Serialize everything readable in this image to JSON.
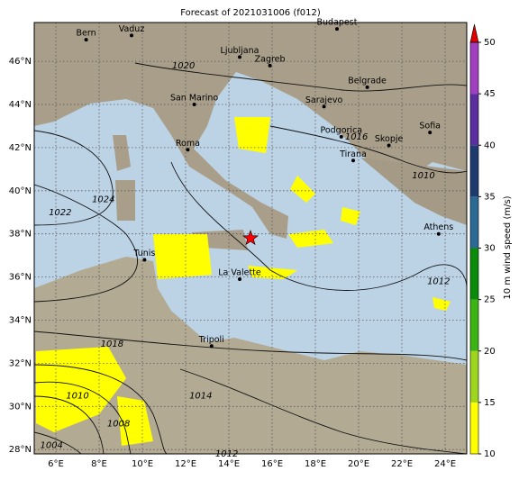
{
  "title": "Forecast of 2021031006 (f012)",
  "lonlim": [
    5,
    25
  ],
  "latlim": [
    27.8,
    47.8
  ],
  "xticks": [
    {
      "value": 6,
      "label": "6°E"
    },
    {
      "value": 8,
      "label": "8°E"
    },
    {
      "value": 10,
      "label": "10°E"
    },
    {
      "value": 12,
      "label": "12°E"
    },
    {
      "value": 14,
      "label": "14°E"
    },
    {
      "value": 16,
      "label": "16°E"
    },
    {
      "value": 18,
      "label": "18°E"
    },
    {
      "value": 20,
      "label": "20°E"
    },
    {
      "value": 22,
      "label": "22°E"
    },
    {
      "value": 24,
      "label": "24°E"
    }
  ],
  "yticks": [
    {
      "value": 28,
      "label": "28°N"
    },
    {
      "value": 30,
      "label": "30°N"
    },
    {
      "value": 32,
      "label": "32°N"
    },
    {
      "value": 34,
      "label": "34°N"
    },
    {
      "value": 36,
      "label": "36°N"
    },
    {
      "value": 38,
      "label": "38°N"
    },
    {
      "value": 40,
      "label": "40°N"
    },
    {
      "value": 42,
      "label": "42°N"
    },
    {
      "value": 44,
      "label": "44°N"
    },
    {
      "value": 46,
      "label": "46°N"
    }
  ],
  "cities": [
    {
      "name": "Bern",
      "lon": 7.4,
      "lat": 47.0
    },
    {
      "name": "Vaduz",
      "lon": 9.5,
      "lat": 47.2
    },
    {
      "name": "Budapest",
      "lon": 19.0,
      "lat": 47.5
    },
    {
      "name": "Ljubljana",
      "lon": 14.5,
      "lat": 46.2
    },
    {
      "name": "Zagreb",
      "lon": 15.9,
      "lat": 45.8
    },
    {
      "name": "Belgrade",
      "lon": 20.4,
      "lat": 44.8
    },
    {
      "name": "San Marino",
      "lon": 12.4,
      "lat": 44.0
    },
    {
      "name": "Sarajevo",
      "lon": 18.4,
      "lat": 43.9
    },
    {
      "name": "Roma",
      "lon": 12.1,
      "lat": 41.9
    },
    {
      "name": "Podgorica",
      "lon": 19.2,
      "lat": 42.5
    },
    {
      "name": "Skopje",
      "lon": 21.4,
      "lat": 42.1
    },
    {
      "name": "Sofia",
      "lon": 23.3,
      "lat": 42.7
    },
    {
      "name": "Tirana",
      "lon": 19.75,
      "lat": 41.4
    },
    {
      "name": "Athens",
      "lon": 23.7,
      "lat": 38.0
    },
    {
      "name": "Tunis",
      "lon": 10.1,
      "lat": 36.8
    },
    {
      "name": "La Valette",
      "lon": 14.5,
      "lat": 35.9
    },
    {
      "name": "Tripoli",
      "lon": 13.2,
      "lat": 32.8
    }
  ],
  "star": {
    "lon": 15.0,
    "lat": 37.8,
    "color": "#ff0000"
  },
  "isobar_labels": [
    {
      "label": "1020",
      "lon": 11.9,
      "lat": 45.8
    },
    {
      "label": "1016",
      "lon": 19.9,
      "lat": 42.5
    },
    {
      "label": "1010",
      "lon": 23.0,
      "lat": 40.7
    },
    {
      "label": "1024",
      "lon": 8.2,
      "lat": 39.6
    },
    {
      "label": "1022",
      "lon": 6.2,
      "lat": 39.0
    },
    {
      "label": "1012",
      "lon": 23.7,
      "lat": 35.8
    },
    {
      "label": "1018",
      "lon": 8.6,
      "lat": 32.9
    },
    {
      "label": "1014",
      "lon": 12.7,
      "lat": 30.5
    },
    {
      "label": "1010",
      "lon": 7.0,
      "lat": 30.5
    },
    {
      "label": "1008",
      "lon": 8.9,
      "lat": 29.2
    },
    {
      "label": "1004",
      "lon": 5.8,
      "lat": 28.2
    },
    {
      "label": "1012",
      "lon": 13.9,
      "lat": 27.8
    }
  ],
  "colorbar": {
    "label": "10 m wind speed (m/s)",
    "lim": [
      10,
      50
    ],
    "ticks": [
      10,
      15,
      20,
      25,
      30,
      35,
      40,
      45,
      50
    ],
    "colors": [
      "#ffff00",
      "#9ed61e",
      "#3cb414",
      "#0a8c0a",
      "#2c6a96",
      "#1e3a6e",
      "#5a2e9e",
      "#a040c0"
    ],
    "extend_color": "#e00000"
  }
}
